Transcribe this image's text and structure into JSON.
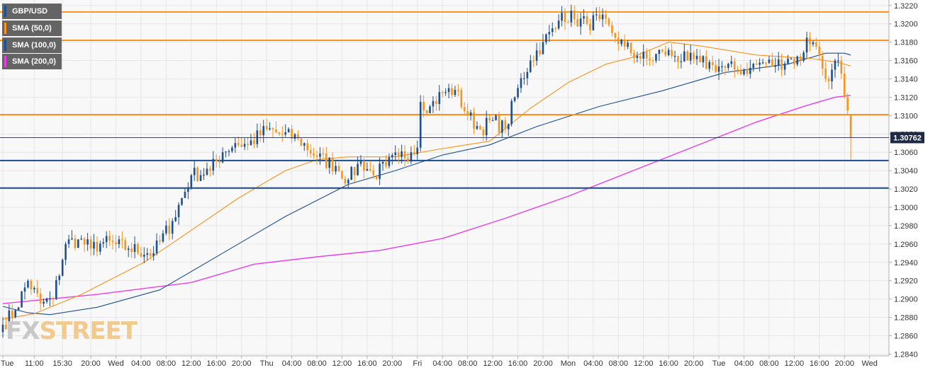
{
  "chart_data": {
    "type": "candlestick",
    "symbol": "GBP/USD",
    "y_axis": {
      "ticks": [
        "1.2840",
        "1.2860",
        "1.2880",
        "1.2900",
        "1.2920",
        "1.2940",
        "1.2960",
        "1.2980",
        "1.3000",
        "1.3020",
        "1.3040",
        "1.3060",
        "1.3080",
        "1.3100",
        "1.3120",
        "1.3140",
        "1.3160",
        "1.3180",
        "1.3200",
        "1.3220"
      ],
      "range": [
        1.2838,
        1.3226
      ],
      "position": "right"
    },
    "x_axis": {
      "ticks": [
        {
          "label": "Tue",
          "i": 0
        },
        {
          "label": "11:00",
          "i": 10
        },
        {
          "label": "15:30",
          "i": 19
        },
        {
          "label": "20:00",
          "i": 28
        },
        {
          "label": "Wed",
          "i": 36
        },
        {
          "label": "04:00",
          "i": 44
        },
        {
          "label": "08:00",
          "i": 52
        },
        {
          "label": "12:00",
          "i": 60
        },
        {
          "label": "16:00",
          "i": 68
        },
        {
          "label": "20:00",
          "i": 76
        },
        {
          "label": "Thu",
          "i": 84
        },
        {
          "label": "04:00",
          "i": 92
        },
        {
          "label": "08:00",
          "i": 100
        },
        {
          "label": "12:00",
          "i": 108
        },
        {
          "label": "16:00",
          "i": 116
        },
        {
          "label": "20:00",
          "i": 124
        },
        {
          "label": "Fri",
          "i": 132
        },
        {
          "label": "04:00",
          "i": 140
        },
        {
          "label": "08:00",
          "i": 148
        },
        {
          "label": "12:00",
          "i": 156
        },
        {
          "label": "16:00",
          "i": 164
        },
        {
          "label": "20:00",
          "i": 172
        },
        {
          "label": "Mon",
          "i": 180
        },
        {
          "label": "04:00",
          "i": 188
        },
        {
          "label": "08:00",
          "i": 196
        },
        {
          "label": "12:00",
          "i": 204
        },
        {
          "label": "16:00",
          "i": 212
        },
        {
          "label": "20:00",
          "i": 220
        },
        {
          "label": "Tue",
          "i": 228
        },
        {
          "label": "04:00",
          "i": 236
        },
        {
          "label": "08:00",
          "i": 244
        },
        {
          "label": "12:00",
          "i": 252
        },
        {
          "label": "16:00",
          "i": 260
        },
        {
          "label": "20:00",
          "i": 268
        },
        {
          "label": "Wed",
          "i": 276
        }
      ]
    },
    "last_price": "1.30762",
    "last_price_value": 1.3076,
    "horizontal_levels": [
      {
        "value": 1.3213,
        "color": "#f7931e"
      },
      {
        "value": 1.3182,
        "color": "#f7931e"
      },
      {
        "value": 1.3101,
        "color": "#f7931e"
      },
      {
        "value": 1.3051,
        "color": "#1a4b8c"
      },
      {
        "value": 1.3021,
        "color": "#1a4b8c"
      }
    ],
    "colors": {
      "bull": "#1d4f91",
      "bear": "#f7931e",
      "sma50": "#f7931e",
      "sma100": "#1d4f91",
      "sma200": "#e83ee8"
    },
    "series": [
      {
        "name": "GBP/USD",
        "color": "#1d4f91"
      },
      {
        "name": "SMA (50,0)",
        "color": "#f7931e"
      },
      {
        "name": "SMA (100,0)",
        "color": "#1d4f91"
      },
      {
        "name": "SMA (200,0)",
        "color": "#e83ee8"
      }
    ],
    "sma50_points": [
      [
        0,
        1.2878
      ],
      [
        10,
        1.2884
      ],
      [
        25,
        1.2905
      ],
      [
        45,
        1.294
      ],
      [
        60,
        1.2975
      ],
      [
        75,
        1.301
      ],
      [
        90,
        1.304
      ],
      [
        100,
        1.3052
      ],
      [
        110,
        1.3055
      ],
      [
        125,
        1.3055
      ],
      [
        140,
        1.3064
      ],
      [
        155,
        1.3072
      ],
      [
        168,
        1.3108
      ],
      [
        180,
        1.3136
      ],
      [
        192,
        1.3156
      ],
      [
        200,
        1.3163
      ],
      [
        212,
        1.318
      ],
      [
        222,
        1.3176
      ],
      [
        240,
        1.3166
      ],
      [
        258,
        1.3162
      ],
      [
        266,
        1.3158
      ],
      [
        270,
        1.3154
      ]
    ],
    "sma100_points": [
      [
        0,
        1.2892
      ],
      [
        8,
        1.2885
      ],
      [
        15,
        1.2883
      ],
      [
        30,
        1.2891
      ],
      [
        50,
        1.291
      ],
      [
        70,
        1.295
      ],
      [
        90,
        1.299
      ],
      [
        110,
        1.3025
      ],
      [
        125,
        1.304
      ],
      [
        140,
        1.3057
      ],
      [
        155,
        1.3068
      ],
      [
        170,
        1.3088
      ],
      [
        190,
        1.311
      ],
      [
        210,
        1.3127
      ],
      [
        230,
        1.3147
      ],
      [
        250,
        1.3156
      ],
      [
        262,
        1.3168
      ],
      [
        268,
        1.3168
      ],
      [
        270,
        1.3166
      ]
    ],
    "sma200_points": [
      [
        0,
        1.2895
      ],
      [
        30,
        1.2905
      ],
      [
        60,
        1.2918
      ],
      [
        80,
        1.2938
      ],
      [
        100,
        1.2946
      ],
      [
        120,
        1.2953
      ],
      [
        140,
        1.2966
      ],
      [
        160,
        1.2988
      ],
      [
        180,
        1.3012
      ],
      [
        200,
        1.3039
      ],
      [
        220,
        1.3066
      ],
      [
        240,
        1.3093
      ],
      [
        255,
        1.311
      ],
      [
        265,
        1.312
      ],
      [
        270,
        1.3122
      ]
    ],
    "anchor_closes": [
      [
        0,
        1.2872
      ],
      [
        4,
        1.2888
      ],
      [
        8,
        1.292
      ],
      [
        12,
        1.2895
      ],
      [
        16,
        1.29
      ],
      [
        20,
        1.296
      ],
      [
        24,
        1.2965
      ],
      [
        28,
        1.2955
      ],
      [
        32,
        1.2962
      ],
      [
        40,
        1.2955
      ],
      [
        48,
        1.295
      ],
      [
        54,
        1.2985
      ],
      [
        60,
        1.3035
      ],
      [
        66,
        1.304
      ],
      [
        70,
        1.306
      ],
      [
        74,
        1.307
      ],
      [
        78,
        1.3068
      ],
      [
        84,
        1.3085
      ],
      [
        88,
        1.308
      ],
      [
        94,
        1.3075
      ],
      [
        100,
        1.3055
      ],
      [
        106,
        1.3045
      ],
      [
        110,
        1.303
      ],
      [
        114,
        1.305
      ],
      [
        118,
        1.3035
      ],
      [
        122,
        1.3045
      ],
      [
        126,
        1.3055
      ],
      [
        130,
        1.306
      ],
      [
        132,
        1.3065
      ],
      [
        133,
        1.3115
      ],
      [
        136,
        1.311
      ],
      [
        140,
        1.3125
      ],
      [
        144,
        1.3128
      ],
      [
        148,
        1.31
      ],
      [
        152,
        1.3085
      ],
      [
        156,
        1.3095
      ],
      [
        160,
        1.3085
      ],
      [
        164,
        1.313
      ],
      [
        168,
        1.316
      ],
      [
        172,
        1.318
      ],
      [
        176,
        1.3195
      ],
      [
        178,
        1.3212
      ],
      [
        182,
        1.3205
      ],
      [
        186,
        1.32
      ],
      [
        190,
        1.3205
      ],
      [
        194,
        1.319
      ],
      [
        198,
        1.3175
      ],
      [
        202,
        1.3165
      ],
      [
        206,
        1.316
      ],
      [
        210,
        1.317
      ],
      [
        214,
        1.3165
      ],
      [
        218,
        1.316
      ],
      [
        222,
        1.3158
      ],
      [
        226,
        1.3155
      ],
      [
        230,
        1.3152
      ],
      [
        234,
        1.315
      ],
      [
        238,
        1.3152
      ],
      [
        242,
        1.3158
      ],
      [
        246,
        1.3155
      ],
      [
        250,
        1.3162
      ],
      [
        254,
        1.316
      ],
      [
        256,
        1.3185
      ],
      [
        258,
        1.318
      ],
      [
        260,
        1.3165
      ],
      [
        262,
        1.314
      ],
      [
        264,
        1.315
      ],
      [
        266,
        1.316
      ],
      [
        268,
        1.312
      ],
      [
        270,
        1.3076
      ]
    ],
    "final_candle": {
      "open": 1.31,
      "high": 1.31,
      "low": 1.3052,
      "close": 1.3076
    }
  },
  "legend": [
    {
      "label": "GBP/USD",
      "color": "#1d4f91"
    },
    {
      "label": "SMA (50,0)",
      "color": "#f7931e"
    },
    {
      "label": "SMA (100,0)",
      "color": "#1d4f91"
    },
    {
      "label": "SMA (200,0)",
      "color": "#e83ee8"
    }
  ],
  "watermark": {
    "part1": "FX",
    "part2": "STREET"
  }
}
